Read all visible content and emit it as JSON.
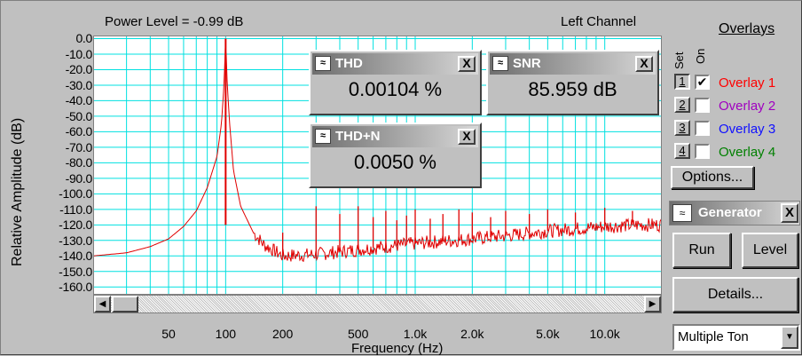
{
  "graph": {
    "power_level": "Power Level = -0.99 dB",
    "channel": "Left Channel",
    "y_axis_title": "Relative Amplitude (dB)",
    "x_axis_title": "Frequency (Hz)",
    "y_ticks": [
      "0.0",
      "-10.0",
      "-20.0",
      "-30.0",
      "-40.0",
      "-50.0",
      "-60.0",
      "-70.0",
      "-80.0",
      "-90.0",
      "-100.0",
      "-110.0",
      "-120.0",
      "-130.0",
      "-140.0",
      "-150.0",
      "-160.0"
    ],
    "x_ticks": [
      "50",
      "100",
      "200",
      "500",
      "1.0k",
      "2.0k",
      "5.0k",
      "10.0k"
    ]
  },
  "chart_data": {
    "type": "line",
    "title": "",
    "xlabel": "Frequency (Hz)",
    "ylabel": "Relative Amplitude (dB)",
    "xscale": "log",
    "xlim": [
      20,
      20000
    ],
    "ylim": [
      -165,
      2
    ],
    "grid": true,
    "line_color": "#e00000",
    "fundamental_hz": 100,
    "series": [
      {
        "x": [
          20,
          30,
          40,
          50,
          60,
          70,
          80,
          90,
          95,
          98,
          100,
          102,
          105,
          110,
          120,
          140,
          160,
          200,
          300,
          500,
          700,
          1000,
          2000,
          3000,
          5000,
          10000,
          15000,
          20000
        ],
        "y": [
          -140,
          -138,
          -134,
          -129,
          -121,
          -111,
          -96,
          -76,
          -55,
          -30,
          0,
          -30,
          -55,
          -85,
          -108,
          -125,
          -133,
          -140,
          -139,
          -136,
          -134,
          -132,
          -129,
          -127,
          -124,
          -121,
          -120,
          -120
        ]
      }
    ],
    "spikes": [
      {
        "x": 200,
        "y": -125
      },
      {
        "x": 300,
        "y": -108
      },
      {
        "x": 400,
        "y": -113
      },
      {
        "x": 500,
        "y": -108
      },
      {
        "x": 600,
        "y": -115
      },
      {
        "x": 700,
        "y": -111
      },
      {
        "x": 800,
        "y": -117
      },
      {
        "x": 900,
        "y": -114
      },
      {
        "x": 1000,
        "y": -110
      },
      {
        "x": 1200,
        "y": -116
      },
      {
        "x": 1400,
        "y": -113
      },
      {
        "x": 1700,
        "y": -110
      },
      {
        "x": 2000,
        "y": -112
      },
      {
        "x": 2500,
        "y": -115
      },
      {
        "x": 3000,
        "y": -111
      },
      {
        "x": 4000,
        "y": -113
      },
      {
        "x": 5000,
        "y": -110
      },
      {
        "x": 7000,
        "y": -112
      },
      {
        "x": 10000,
        "y": -109
      },
      {
        "x": 14000,
        "y": -111
      }
    ]
  },
  "meters": {
    "thd": {
      "title": "THD",
      "value": "0.00104 %"
    },
    "snr": {
      "title": "SNR",
      "value": "85.959 dB"
    },
    "thdn": {
      "title": "THD+N",
      "value": "0.0050 %"
    },
    "close_symbol": "X",
    "icon_glyph": "≈"
  },
  "overlays": {
    "heading": "Overlays",
    "set_label": "Set",
    "on_label": "On",
    "items": [
      {
        "num": "1",
        "label": "Overlay 1",
        "checked": "✔",
        "color": "#ff0000"
      },
      {
        "num": "2",
        "label": "Overlay 2",
        "checked": "",
        "color": "#a000c0"
      },
      {
        "num": "3",
        "label": "Overlay 3",
        "checked": "",
        "color": "#1010ff"
      },
      {
        "num": "4",
        "label": "Overlay 4",
        "checked": "",
        "color": "#008000"
      }
    ],
    "options_label": "Options..."
  },
  "generator": {
    "title": "Generator",
    "run_label": "Run",
    "level_label": "Level",
    "details_label": "Details...",
    "waveform": "Multiple Ton"
  }
}
